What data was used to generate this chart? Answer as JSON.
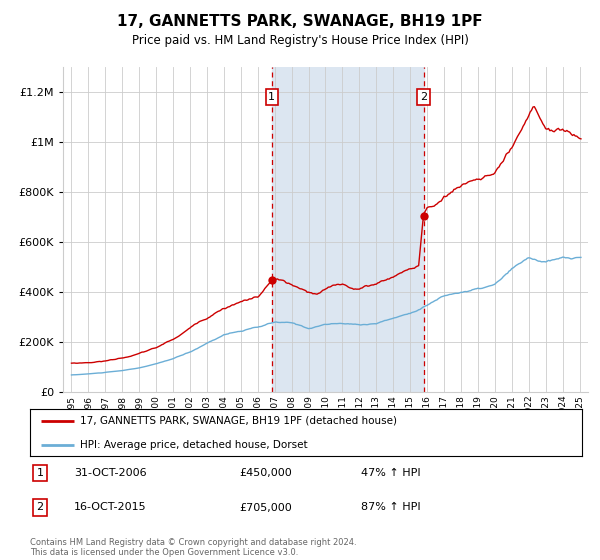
{
  "title": "17, GANNETTS PARK, SWANAGE, BH19 1PF",
  "subtitle": "Price paid vs. HM Land Registry's House Price Index (HPI)",
  "footer": "Contains HM Land Registry data © Crown copyright and database right 2024.\nThis data is licensed under the Open Government Licence v3.0.",
  "legend_line1": "17, GANNETTS PARK, SWANAGE, BH19 1PF (detached house)",
  "legend_line2": "HPI: Average price, detached house, Dorset",
  "sale1_date": "31-OCT-2006",
  "sale1_price": "£450,000",
  "sale1_hpi": "47% ↑ HPI",
  "sale2_date": "16-OCT-2015",
  "sale2_price": "£705,000",
  "sale2_hpi": "87% ↑ HPI",
  "sale1_year": 2006.83,
  "sale1_value": 450000,
  "sale2_year": 2015.79,
  "sale2_value": 705000,
  "hpi_color": "#6baed6",
  "price_color": "#cc0000",
  "highlight_color": "#dce6f1",
  "grid_color": "#cccccc",
  "ylim": [
    0,
    1300000
  ],
  "xlim_start": 1994.5,
  "xlim_end": 2025.5
}
